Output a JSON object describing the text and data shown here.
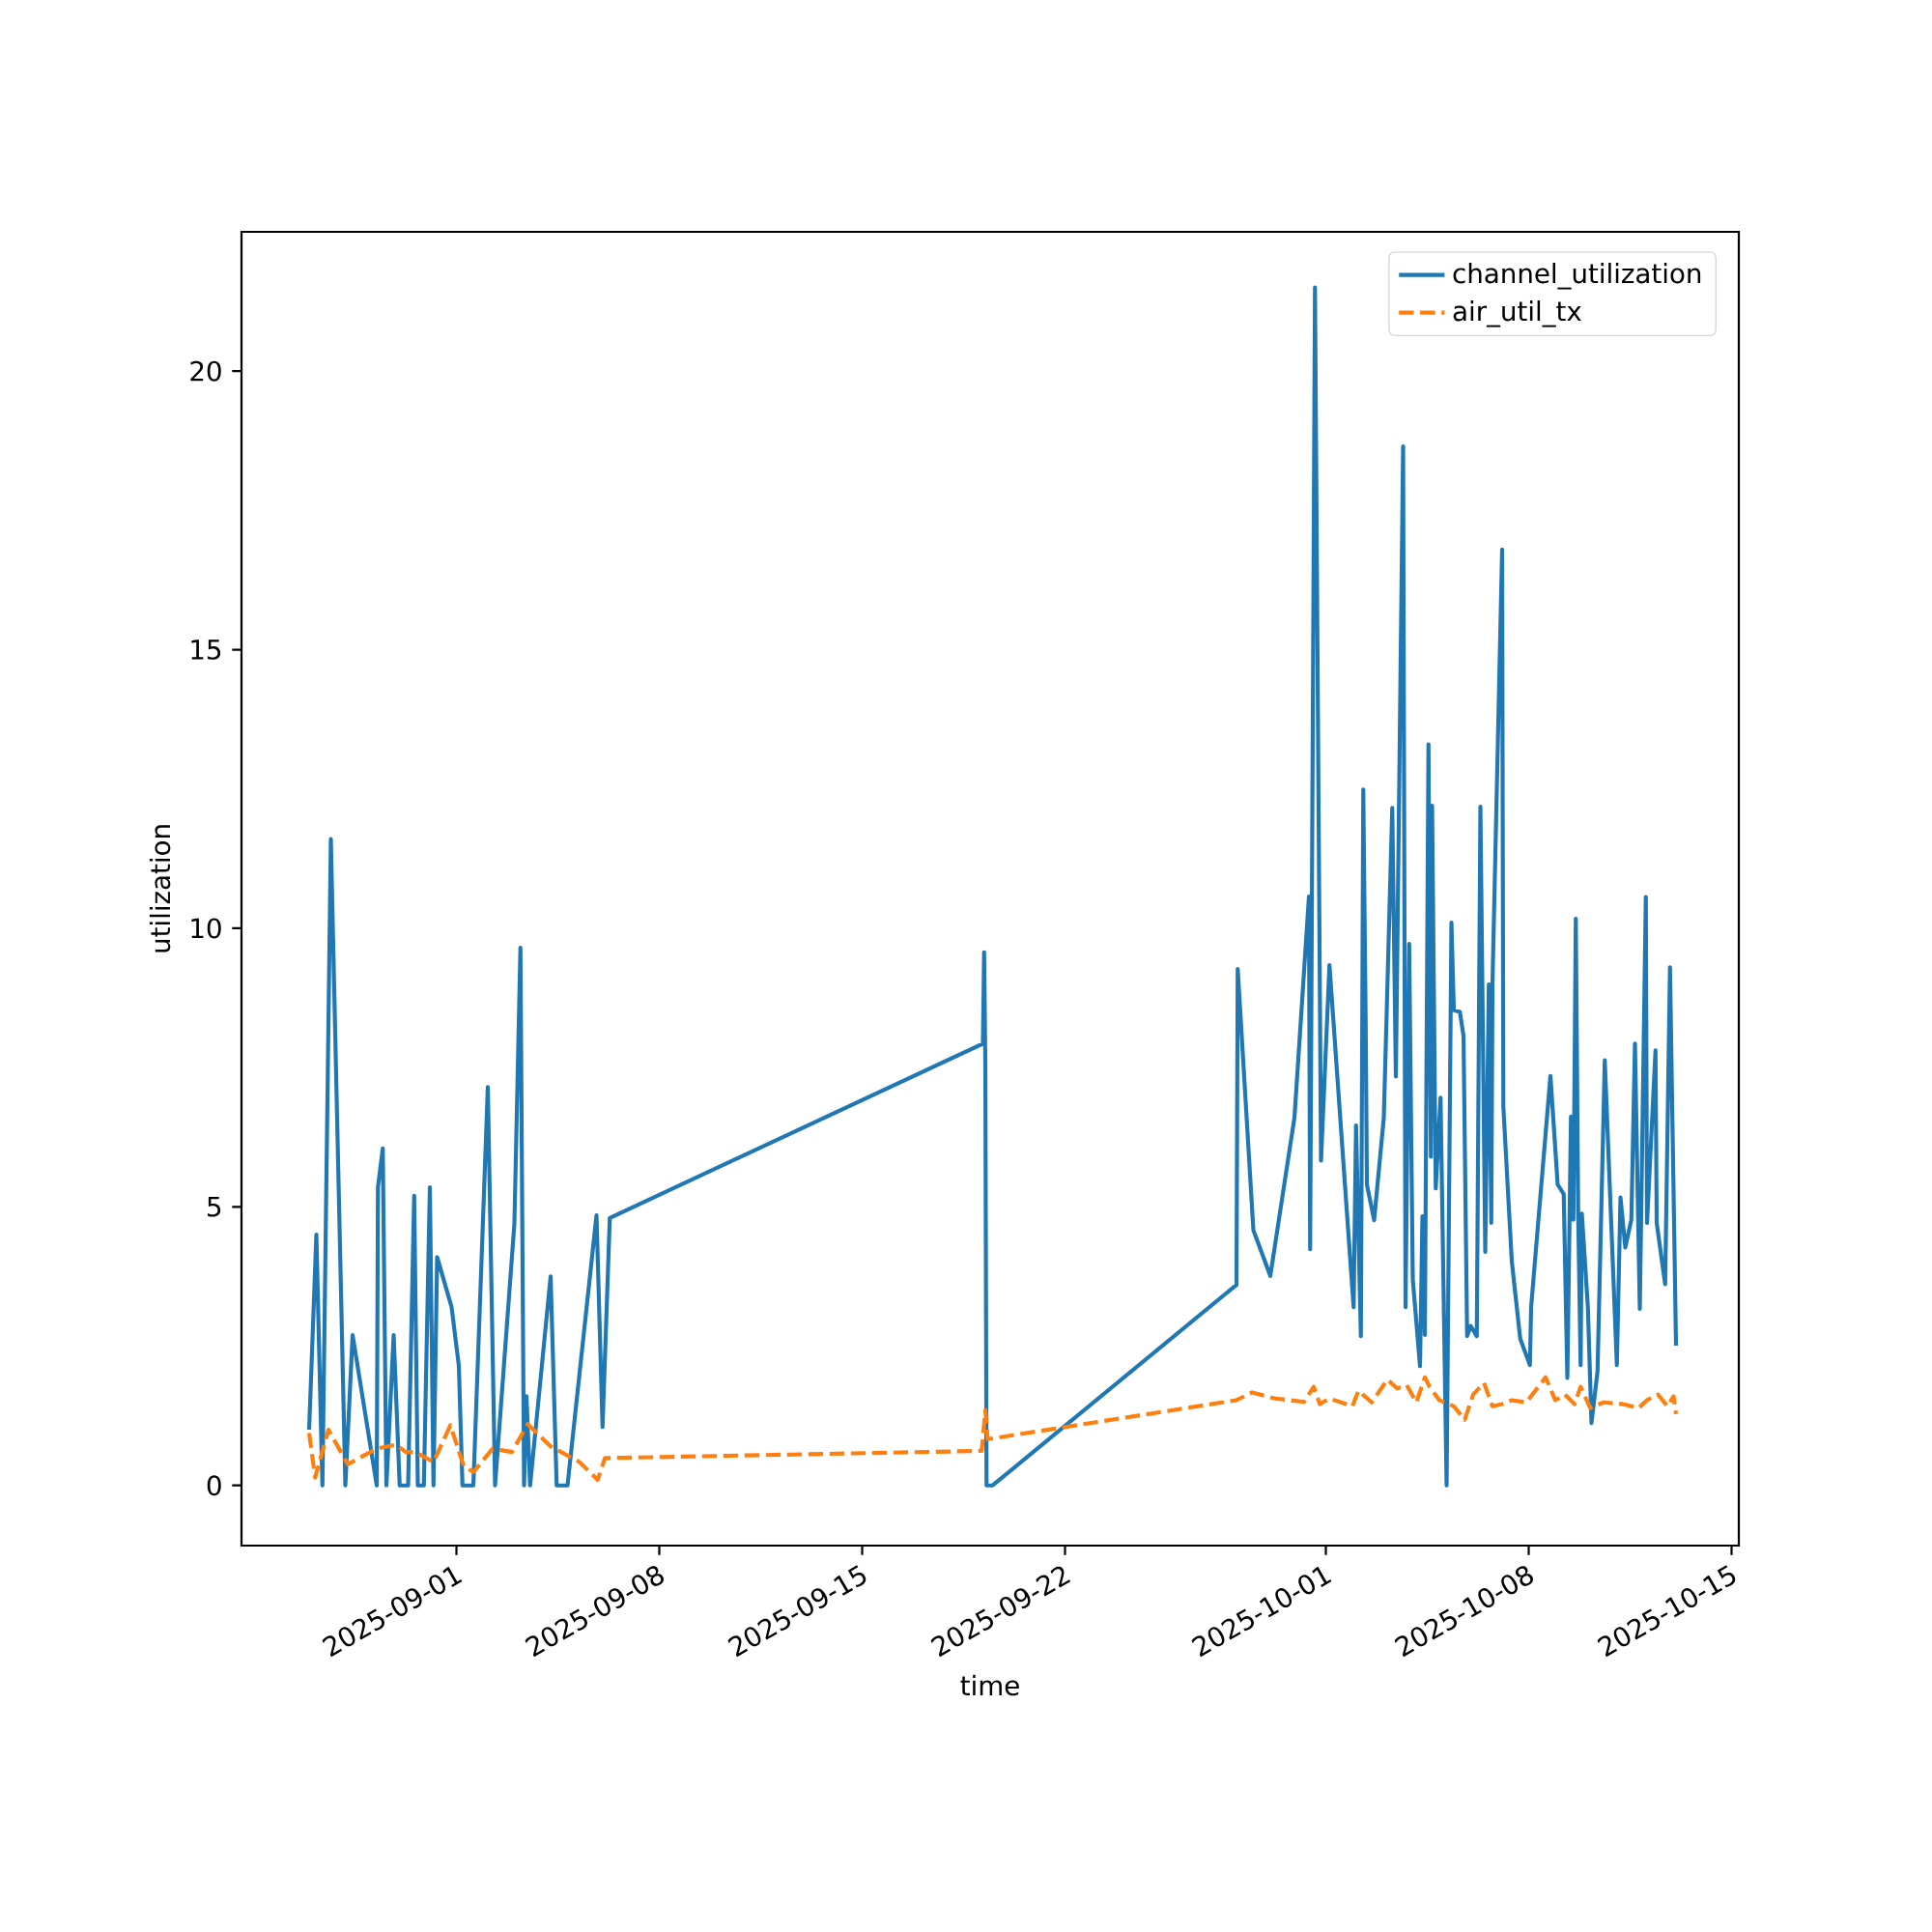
{
  "chart_data": {
    "type": "line",
    "xlabel": "time",
    "ylabel": "utilization",
    "legend": "top right",
    "xlim": [
      "2025-08-24T14:00",
      "2025-10-15T06:00"
    ],
    "ylim": [
      -1.08,
      22.5
    ],
    "xticks": [
      "2025-09-01",
      "2025-09-08",
      "2025-09-15",
      "2025-09-22",
      "2025-10-01",
      "2025-10-08",
      "2025-10-15"
    ],
    "yticks": [
      0,
      5,
      10,
      15,
      20
    ],
    "series": [
      {
        "name": "channel_utilization",
        "color": "#1f77b4",
        "line_style": "solid",
        "x": [
          "2025-08-26T22:00",
          "2025-08-27T04:00",
          "2025-08-27T09:00",
          "2025-08-27T16:00",
          "2025-08-28T04:00",
          "2025-08-28T10:00",
          "2025-08-29T06:00",
          "2025-08-29T07:00",
          "2025-08-29T11:00",
          "2025-08-29T14:00",
          "2025-08-29T20:00",
          "2025-08-30T01:00",
          "2025-08-30T08:00",
          "2025-08-30T13:00",
          "2025-08-30T16:00",
          "2025-08-30T21:00",
          "2025-08-31T02:00",
          "2025-08-31T05:00",
          "2025-08-31T08:00",
          "2025-08-31T20:00",
          "2025-09-01T02:00",
          "2025-09-01T05:00",
          "2025-09-01T14:00",
          "2025-09-02T02:00",
          "2025-09-02T08:00",
          "2025-09-03T00:00",
          "2025-09-03T05:00",
          "2025-09-03T08:00",
          "2025-09-03T10:00",
          "2025-09-03T13:00",
          "2025-09-04T06:00",
          "2025-09-04T11:00",
          "2025-09-04T20:00",
          "2025-09-05T20:00",
          "2025-09-06T01:00",
          "2025-09-06T07:00",
          "2025-09-19T04:00",
          "2025-09-19T05:00",
          "2025-09-19T06:00",
          "2025-09-19T07:00",
          "2025-09-19T12:00",
          "2025-09-27T22:00",
          "2025-09-27T23:00",
          "2025-09-28T12:00",
          "2025-09-29T02:00",
          "2025-09-29T22:00",
          "2025-09-30T10:00",
          "2025-09-30T11:00",
          "2025-09-30T15:00",
          "2025-09-30T20:00",
          "2025-10-01T03:00",
          "2025-10-01T23:00",
          "2025-10-02T01:00",
          "2025-10-02T05:00",
          "2025-10-02T07:00",
          "2025-10-02T09:00",
          "2025-10-02T10:00",
          "2025-10-02T16:00",
          "2025-10-03T00:00",
          "2025-10-03T07:00",
          "2025-10-03T10:00",
          "2025-10-03T16:00",
          "2025-10-03T18:00",
          "2025-10-03T21:00",
          "2025-10-04T00:00",
          "2025-10-04T06:00",
          "2025-10-04T08:00",
          "2025-10-04T10:00",
          "2025-10-04T13:00",
          "2025-10-04T15:00",
          "2025-10-04T16:00",
          "2025-10-04T19:00",
          "2025-10-04T23:00",
          "2025-10-05T04:00",
          "2025-10-05T08:00",
          "2025-10-05T10:00",
          "2025-10-05T15:00",
          "2025-10-05T18:00",
          "2025-10-05T21:00",
          "2025-10-06T00:00",
          "2025-10-06T05:00",
          "2025-10-06T08:00",
          "2025-10-06T12:00",
          "2025-10-06T15:00",
          "2025-10-06T17:00",
          "2025-10-06T18:00",
          "2025-10-07T02:00",
          "2025-10-07T03:00",
          "2025-10-07T10:00",
          "2025-10-07T17:00",
          "2025-10-08T01:00",
          "2025-10-08T02:00",
          "2025-10-08T18:00",
          "2025-10-09T00:00",
          "2025-10-09T05:00",
          "2025-10-09T08:00",
          "2025-10-09T11:00",
          "2025-10-09T13:00",
          "2025-10-09T15:00",
          "2025-10-09T17:00",
          "2025-10-09T19:00",
          "2025-10-09T20:00",
          "2025-10-10T01:00",
          "2025-10-10T04:00",
          "2025-10-10T09:00",
          "2025-10-10T15:00",
          "2025-10-11T01:00",
          "2025-10-11T04:00",
          "2025-10-11T08:00",
          "2025-10-11T13:00",
          "2025-10-11T16:00",
          "2025-10-11T20:00",
          "2025-10-12T01:00",
          "2025-10-12T02:00",
          "2025-10-12T09:00",
          "2025-10-12T10:00",
          "2025-10-12T17:00",
          "2025-10-12T21:00",
          "2025-10-13T02:00"
        ],
        "values": [
          1.0,
          4.5,
          0,
          11.6,
          0,
          2.7,
          0,
          5.35,
          6.05,
          0,
          2.7,
          0,
          0,
          5.2,
          0,
          0,
          5.35,
          0,
          4.1,
          3.2,
          2.15,
          0,
          0,
          7.15,
          0,
          4.7,
          9.65,
          0,
          1.6,
          0,
          3.75,
          0,
          0,
          4.85,
          1.05,
          4.8,
          7.93,
          9.57,
          7.6,
          0,
          0,
          3.6,
          9.27,
          4.58,
          3.76,
          6.6,
          10.57,
          4.24,
          21.5,
          5.83,
          9.34,
          3.2,
          6.46,
          2.68,
          12.49,
          8.3,
          5.4,
          4.76,
          6.6,
          12.16,
          7.34,
          18.65,
          3.2,
          9.72,
          3.7,
          2.14,
          4.83,
          2.7,
          13.3,
          5.9,
          12.2,
          5.33,
          6.96,
          0,
          10.1,
          8.53,
          8.5,
          8.07,
          2.68,
          2.86,
          2.68,
          12.18,
          4.19,
          8.99,
          4.71,
          9.0,
          16.8,
          6.8,
          4.02,
          2.63,
          2.16,
          3.2,
          7.35,
          5.4,
          5.23,
          1.93,
          6.62,
          4.77,
          10.17,
          4.83,
          2.16,
          4.88,
          3.2,
          1.12,
          2.05,
          7.63,
          2.16,
          5.17,
          4.27,
          4.77,
          7.93,
          3.17,
          10.56,
          4.71,
          7.81,
          4.71,
          3.61,
          9.3,
          2.51
        ]
      },
      {
        "name": "air_util_tx",
        "color": "#ff7f0e",
        "line_style": "dashed",
        "x": [
          "2025-08-26T22:00",
          "2025-08-27T03:00",
          "2025-08-27T14:00",
          "2025-08-28T06:00",
          "2025-08-29T06:00",
          "2025-08-29T22:00",
          "2025-08-30T06:00",
          "2025-08-30T14:00",
          "2025-08-31T05:00",
          "2025-08-31T19:00",
          "2025-09-01T06:00",
          "2025-09-01T14:00",
          "2025-09-02T06:00",
          "2025-09-02T22:00",
          "2025-09-03T11:00",
          "2025-09-04T06:00",
          "2025-09-05T06:00",
          "2025-09-05T21:00",
          "2025-09-06T03:00",
          "2025-09-19T03:00",
          "2025-09-19T06:00",
          "2025-09-19T08:00",
          "2025-09-27T22:00",
          "2025-09-28T11:00",
          "2025-09-29T06:00",
          "2025-09-30T06:00",
          "2025-09-30T14:00",
          "2025-09-30T19:00",
          "2025-10-01T03:00",
          "2025-10-01T22:00",
          "2025-10-02T03:00",
          "2025-10-02T14:00",
          "2025-10-03T03:00",
          "2025-10-03T11:00",
          "2025-10-03T19:00",
          "2025-10-04T03:00",
          "2025-10-04T10:00",
          "2025-10-04T14:00",
          "2025-10-04T22:00",
          "2025-10-05T10:00",
          "2025-10-05T19:00",
          "2025-10-06T02:00",
          "2025-10-06T11:00",
          "2025-10-06T18:00",
          "2025-10-07T02:00",
          "2025-10-07T10:00",
          "2025-10-07T22:00",
          "2025-10-08T14:00",
          "2025-10-08T22:00",
          "2025-10-09T06:00",
          "2025-10-09T14:00",
          "2025-10-09T19:00",
          "2025-10-10T03:00",
          "2025-10-10T14:00",
          "2025-10-11T06:00",
          "2025-10-11T19:00",
          "2025-10-12T02:00",
          "2025-10-12T11:00",
          "2025-10-12T19:00",
          "2025-10-13T00:00",
          "2025-10-13T02:00"
        ],
        "values": [
          0.94,
          0.14,
          1.0,
          0.38,
          0.66,
          0.73,
          0.6,
          0.6,
          0.42,
          1.08,
          0.35,
          0.24,
          0.66,
          0.6,
          1.1,
          0.7,
          0.42,
          0.1,
          0.49,
          0.62,
          1.35,
          0.83,
          1.53,
          1.67,
          1.56,
          1.5,
          1.77,
          1.46,
          1.56,
          1.42,
          1.7,
          1.49,
          1.9,
          1.74,
          1.8,
          1.49,
          1.94,
          1.77,
          1.53,
          1.42,
          1.18,
          1.63,
          1.84,
          1.42,
          1.46,
          1.53,
          1.49,
          1.94,
          1.53,
          1.63,
          1.46,
          1.77,
          1.39,
          1.49,
          1.46,
          1.39,
          1.53,
          1.63,
          1.42,
          1.6,
          1.28
        ]
      }
    ]
  }
}
